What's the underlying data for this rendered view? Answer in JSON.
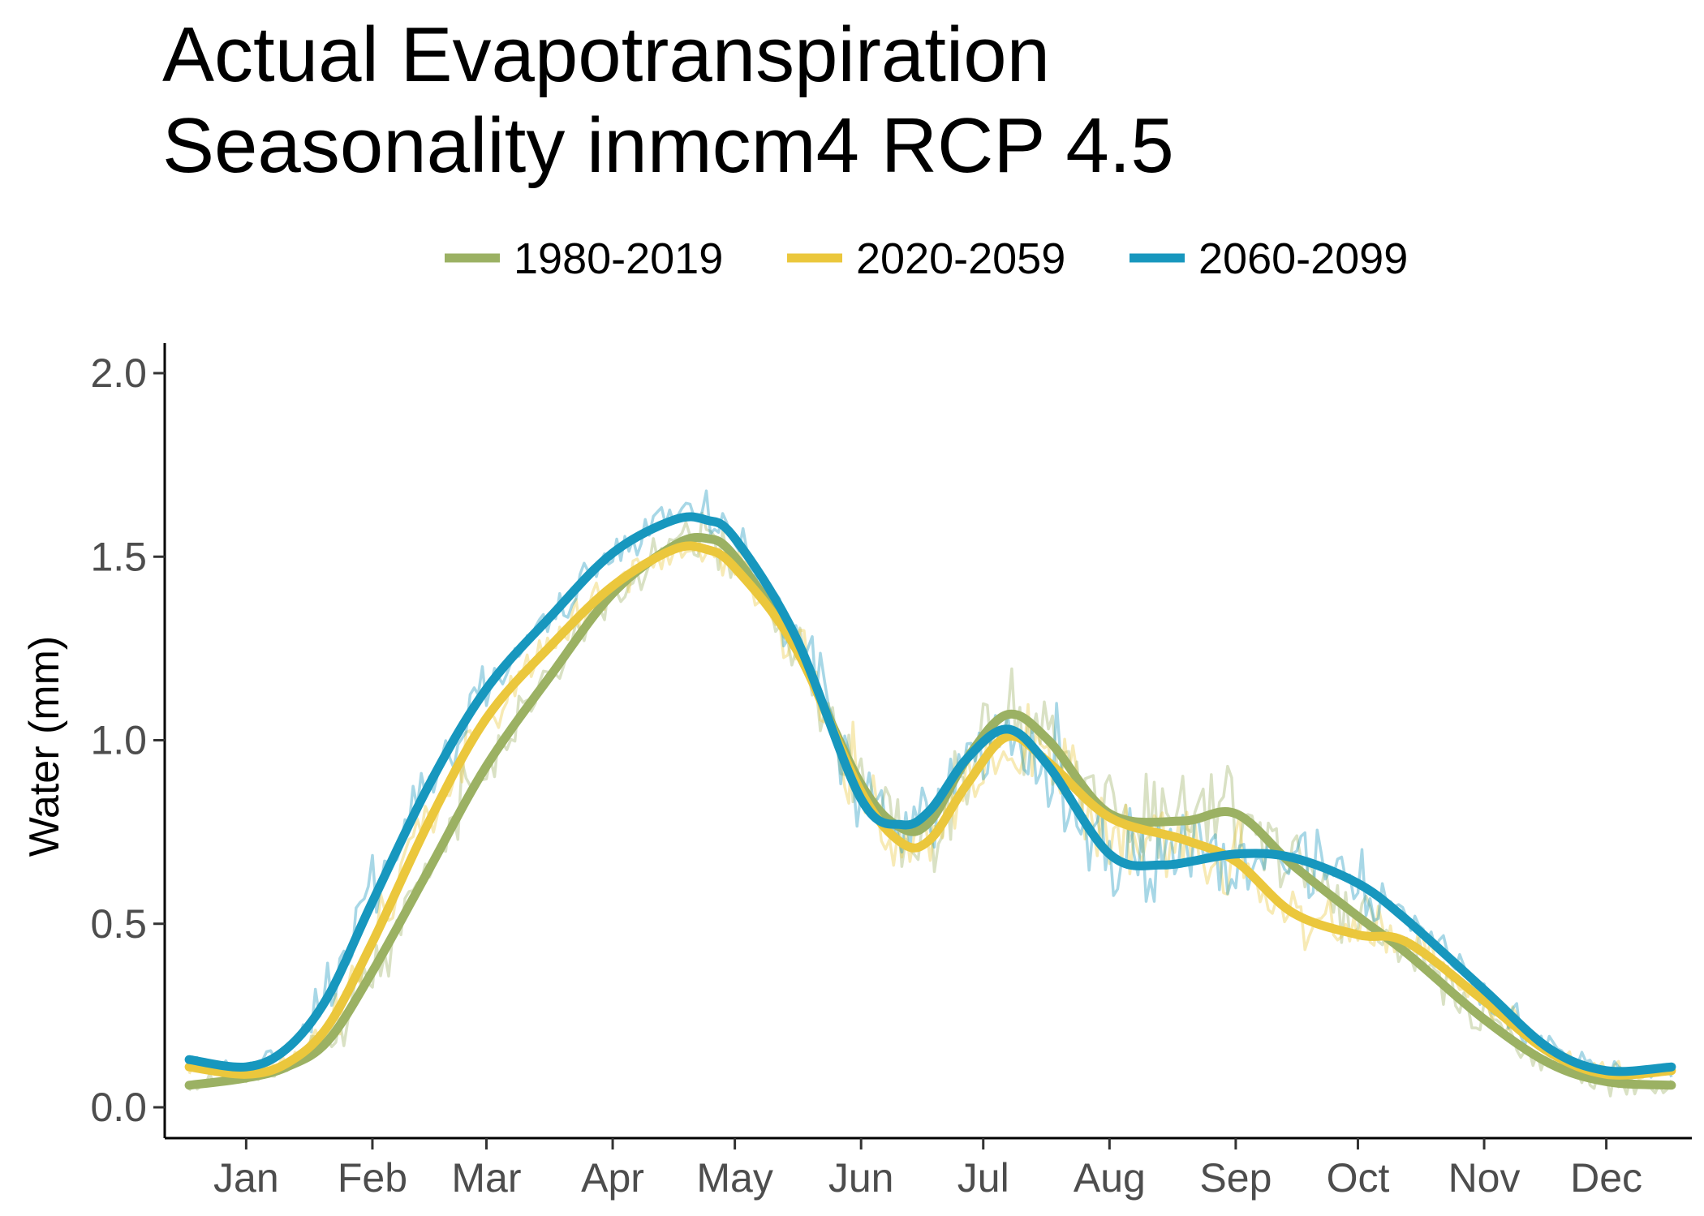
{
  "chart_data": {
    "type": "line",
    "title_line1": "Actual Evapotranspiration",
    "title_line2": "Seasonality inmcm4 RCP 4.5",
    "xlabel": "",
    "ylabel": "Water (mm)",
    "ylim": [
      0,
      2
    ],
    "xlim": [
      -5,
      370
    ],
    "yticks": [
      0,
      0.5,
      1,
      1.5,
      2
    ],
    "ytick_labels": [
      "0.0",
      "0.5",
      "1.0",
      "1.5",
      "2.0"
    ],
    "month_ticks": [
      {
        "label": "Jan",
        "day": 15
      },
      {
        "label": "Feb",
        "day": 46
      },
      {
        "label": "Mar",
        "day": 74
      },
      {
        "label": "Apr",
        "day": 105
      },
      {
        "label": "May",
        "day": 135
      },
      {
        "label": "Jun",
        "day": 166
      },
      {
        "label": "Jul",
        "day": 196
      },
      {
        "label": "Aug",
        "day": 227
      },
      {
        "label": "Sep",
        "day": 258
      },
      {
        "label": "Oct",
        "day": 288
      },
      {
        "label": "Nov",
        "day": 319
      },
      {
        "label": "Dec",
        "day": 349
      }
    ],
    "grid": false,
    "legend_position": "top",
    "series": [
      {
        "name": "1980-2019",
        "color": "#9bb163",
        "smooth": [
          [
            1,
            0.06
          ],
          [
            15,
            0.08
          ],
          [
            25,
            0.11
          ],
          [
            35,
            0.18
          ],
          [
            46,
            0.37
          ],
          [
            60,
            0.65
          ],
          [
            74,
            0.93
          ],
          [
            90,
            1.18
          ],
          [
            105,
            1.4
          ],
          [
            120,
            1.53
          ],
          [
            128,
            1.55
          ],
          [
            135,
            1.5
          ],
          [
            150,
            1.25
          ],
          [
            166,
            0.88
          ],
          [
            176,
            0.76
          ],
          [
            183,
            0.78
          ],
          [
            192,
            0.95
          ],
          [
            202,
            1.07
          ],
          [
            212,
            1.0
          ],
          [
            227,
            0.8
          ],
          [
            245,
            0.78
          ],
          [
            258,
            0.8
          ],
          [
            272,
            0.66
          ],
          [
            288,
            0.52
          ],
          [
            300,
            0.42
          ],
          [
            319,
            0.24
          ],
          [
            335,
            0.12
          ],
          [
            349,
            0.07
          ],
          [
            365,
            0.06
          ]
        ]
      },
      {
        "name": "2020-2059",
        "color": "#ebc73c",
        "smooth": [
          [
            1,
            0.11
          ],
          [
            15,
            0.09
          ],
          [
            25,
            0.12
          ],
          [
            35,
            0.22
          ],
          [
            46,
            0.45
          ],
          [
            60,
            0.78
          ],
          [
            74,
            1.06
          ],
          [
            90,
            1.26
          ],
          [
            105,
            1.42
          ],
          [
            120,
            1.52
          ],
          [
            128,
            1.52
          ],
          [
            135,
            1.47
          ],
          [
            150,
            1.25
          ],
          [
            166,
            0.86
          ],
          [
            176,
            0.72
          ],
          [
            183,
            0.73
          ],
          [
            192,
            0.88
          ],
          [
            202,
            1.01
          ],
          [
            212,
            0.94
          ],
          [
            227,
            0.79
          ],
          [
            245,
            0.73
          ],
          [
            258,
            0.67
          ],
          [
            272,
            0.53
          ],
          [
            288,
            0.47
          ],
          [
            300,
            0.45
          ],
          [
            319,
            0.29
          ],
          [
            335,
            0.15
          ],
          [
            349,
            0.09
          ],
          [
            365,
            0.1
          ]
        ]
      },
      {
        "name": "2060-2099",
        "color": "#1797be",
        "smooth": [
          [
            1,
            0.13
          ],
          [
            15,
            0.11
          ],
          [
            25,
            0.16
          ],
          [
            35,
            0.3
          ],
          [
            46,
            0.56
          ],
          [
            60,
            0.88
          ],
          [
            74,
            1.14
          ],
          [
            90,
            1.34
          ],
          [
            105,
            1.51
          ],
          [
            120,
            1.6
          ],
          [
            128,
            1.6
          ],
          [
            135,
            1.55
          ],
          [
            150,
            1.28
          ],
          [
            166,
            0.84
          ],
          [
            176,
            0.77
          ],
          [
            183,
            0.81
          ],
          [
            192,
            0.95
          ],
          [
            202,
            1.03
          ],
          [
            212,
            0.93
          ],
          [
            227,
            0.69
          ],
          [
            240,
            0.66
          ],
          [
            258,
            0.69
          ],
          [
            272,
            0.68
          ],
          [
            288,
            0.61
          ],
          [
            300,
            0.51
          ],
          [
            319,
            0.32
          ],
          [
            335,
            0.16
          ],
          [
            349,
            0.1
          ],
          [
            365,
            0.11
          ]
        ]
      }
    ]
  }
}
